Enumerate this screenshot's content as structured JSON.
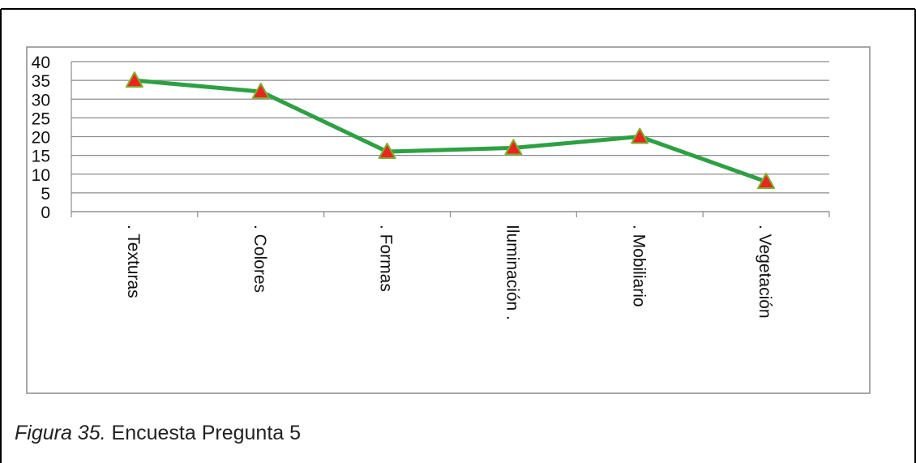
{
  "caption": {
    "figure_label": "Figura 35.",
    "text": "Encuesta Pregunta 5"
  },
  "chart_data": {
    "type": "line",
    "categories": [
      "Texturas",
      "Colores",
      "Formas",
      "Iluminación",
      "Mobiliario",
      "Vegetación"
    ],
    "tick_prefix": ".",
    "y_ticks": [
      "0",
      "5",
      "10",
      "15",
      "20",
      "25",
      "30",
      "35",
      "40"
    ],
    "series": [
      {
        "values": [
          35,
          32,
          16,
          17,
          20,
          8
        ]
      }
    ],
    "ylim": [
      0,
      40
    ],
    "grid": true,
    "line_color": "#2ea043",
    "marker": "triangle",
    "marker_fill": "#e8261f",
    "marker_stroke": "#7fae2f",
    "title": "",
    "xlabel": "",
    "ylabel": ""
  }
}
